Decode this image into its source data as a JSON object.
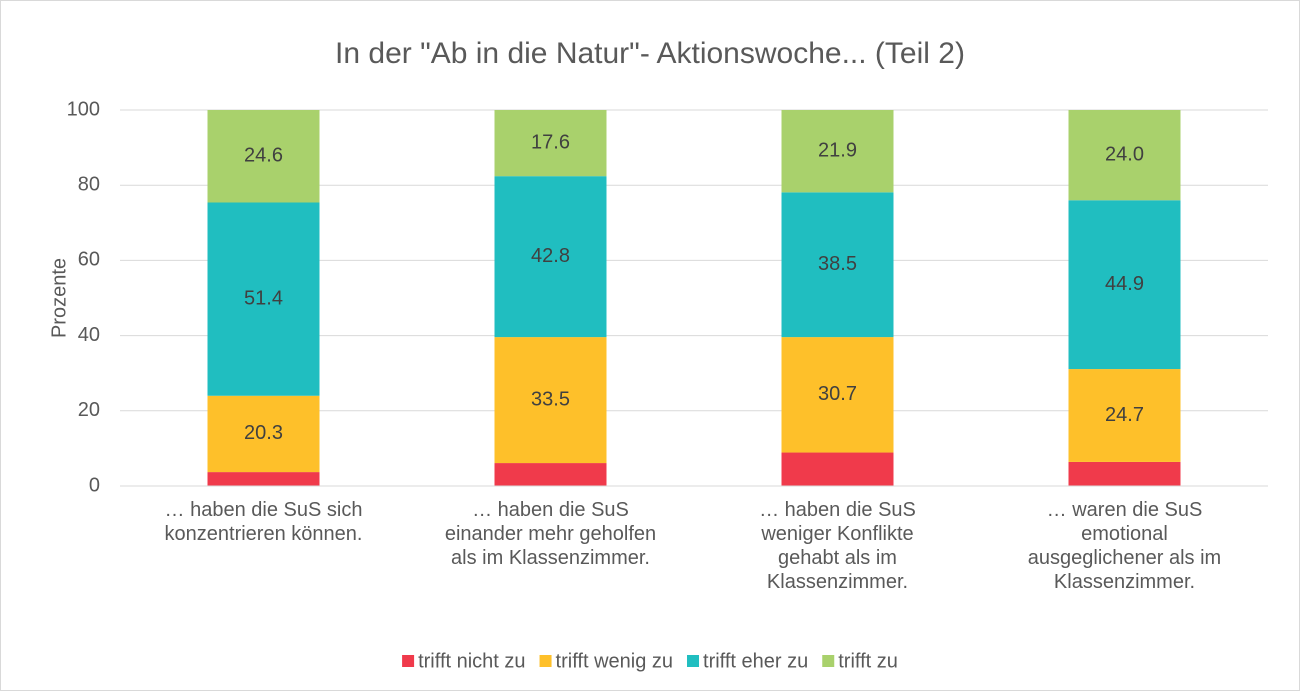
{
  "chart_data": {
    "type": "stacked_bar",
    "title": "In der \"Ab in die Natur\"- Aktionswoche... (Teil 2)",
    "y_label": "Prozente",
    "categories": [
      "… haben die SuS sich konzentrieren können.",
      "… haben die SuS einander mehr geholfen als im Klassenzimmer.",
      "… haben die SuS weniger Konflikte gehabt als im Klassenzimmer.",
      "… waren die SuS emotional ausgeglichener als im Klassenzimmer."
    ],
    "series": [
      {
        "name": "trifft nicht zu",
        "color": "#f03a4b",
        "values": [
          3.7,
          6.1,
          8.9,
          6.4
        ]
      },
      {
        "name": "trifft wenig zu",
        "color": "#fec02a",
        "values": [
          20.3,
          33.5,
          30.7,
          24.7
        ],
        "value_labels": [
          "20.3",
          "33.5",
          "30.7",
          "24.7"
        ]
      },
      {
        "name": "trifft eher zu",
        "color": "#20bec0",
        "values": [
          51.4,
          42.8,
          38.5,
          44.9
        ],
        "value_labels": [
          "51.4",
          "42.8",
          "38.5",
          "44.9"
        ]
      },
      {
        "name": "trifft zu",
        "color": "#a9d16c",
        "values": [
          24.6,
          17.6,
          21.9,
          24.0
        ],
        "value_labels": [
          "24.6",
          "17.6",
          "21.9",
          "24.0"
        ]
      }
    ],
    "ylim": [
      0,
      100
    ],
    "yticks": [
      0,
      20,
      40,
      60,
      80,
      100
    ],
    "grid": true,
    "legend": "bottom"
  }
}
